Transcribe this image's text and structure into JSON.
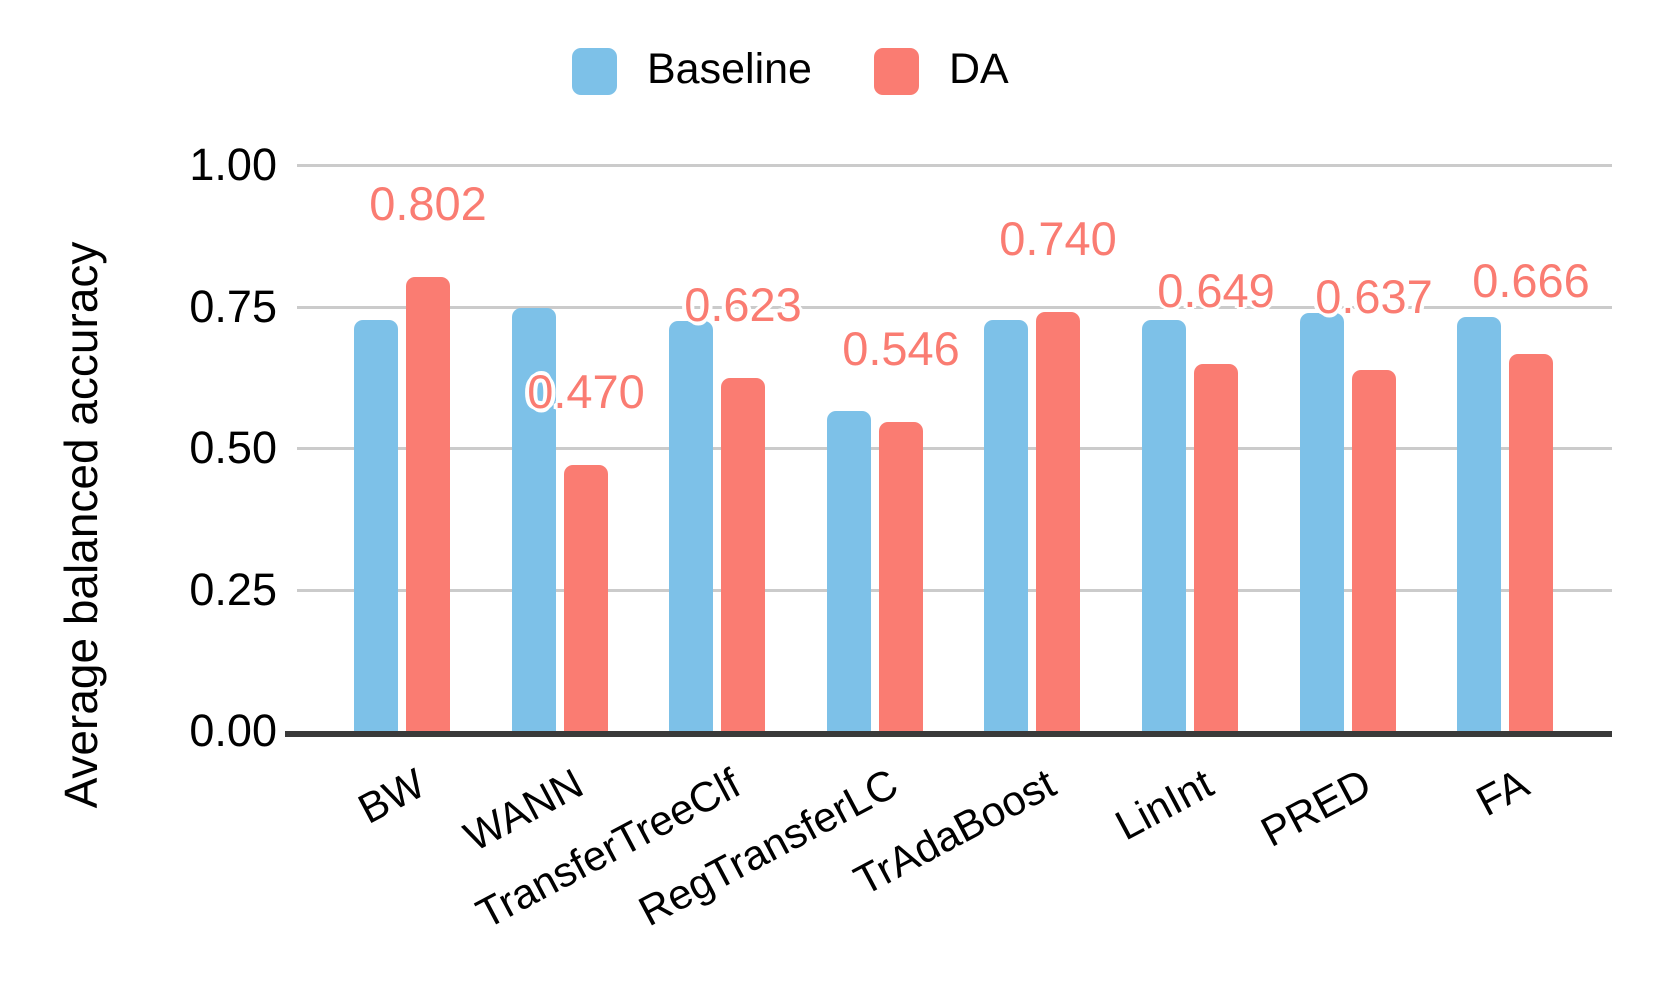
{
  "legend": [
    {
      "label": "Baseline",
      "color": "#7DC1E8"
    },
    {
      "label": "DA",
      "color": "#FA7C72"
    }
  ],
  "chart_data": {
    "type": "bar",
    "title": "",
    "xlabel": "",
    "ylabel": "Average balanced accuracy",
    "ylim": [
      0,
      1
    ],
    "grid": true,
    "legend_position": "top",
    "categories": [
      "BW",
      "WANN",
      "TransferTreeClf",
      "RegTransferLC",
      "TrAdaBoost",
      "LinInt",
      "PRED",
      "FA"
    ],
    "series": [
      {
        "name": "Baseline",
        "color": "#7DC1E8",
        "values": [
          0.727,
          0.748,
          0.725,
          0.565,
          0.727,
          0.727,
          0.738,
          0.732
        ]
      },
      {
        "name": "DA",
        "color": "#FA7C72",
        "values": [
          0.802,
          0.47,
          0.623,
          0.546,
          0.74,
          0.649,
          0.637,
          0.666
        ],
        "value_labels": [
          "0.802",
          "0.470",
          "0.623",
          "0.546",
          "0.740",
          "0.649",
          "0.637",
          "0.666"
        ]
      }
    ],
    "yticks": [
      {
        "value": 1.0,
        "label": "1.00"
      },
      {
        "value": 0.75,
        "label": "0.75"
      },
      {
        "value": 0.5,
        "label": "0.50"
      },
      {
        "value": 0.25,
        "label": "0.25"
      },
      {
        "value": 0.0,
        "label": "0.00"
      }
    ],
    "value_label_color": "#FA7C72",
    "gridline_color": "#cbcbcb",
    "axis_line_color": "#3a3a3a"
  }
}
